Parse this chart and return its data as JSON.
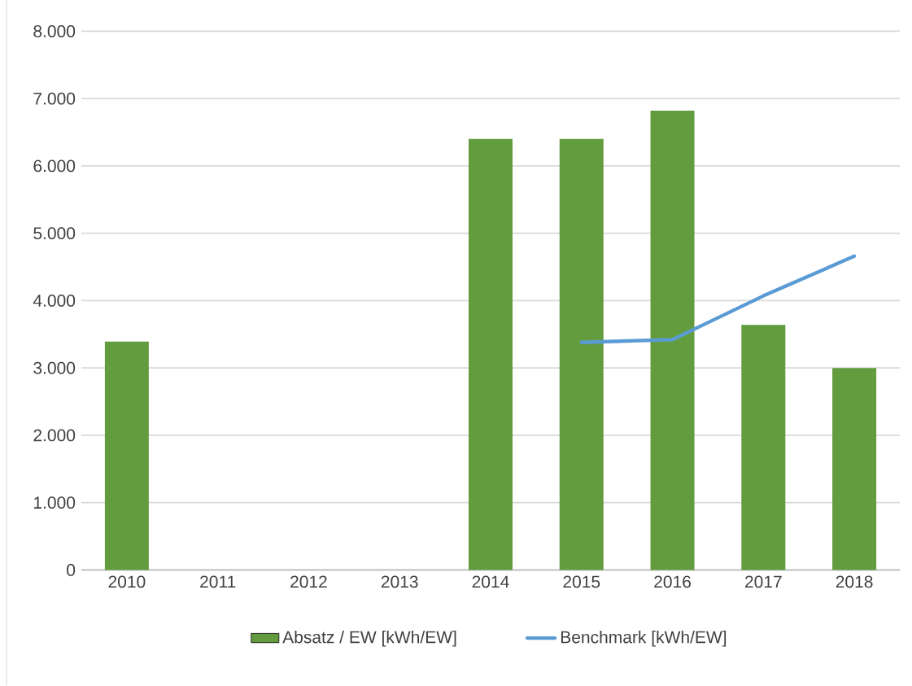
{
  "chart_data": {
    "type": "bar",
    "categories": [
      "2010",
      "2011",
      "2012",
      "2013",
      "2014",
      "2015",
      "2016",
      "2017",
      "2018"
    ],
    "series": [
      {
        "name": "Absatz / EW [kWh/EW]",
        "color": "#629c3e",
        "values": [
          3390,
          null,
          null,
          null,
          6400,
          6400,
          6820,
          3640,
          3000
        ]
      },
      {
        "name": "Benchmark [kWh/EW]",
        "type": "line",
        "color": "#5b9bd5",
        "values": [
          null,
          null,
          null,
          null,
          null,
          3380,
          3420,
          4070,
          4660
        ]
      }
    ],
    "ylim": [
      0,
      8000
    ],
    "yticks": [
      {
        "value": 0,
        "label": "0"
      },
      {
        "value": 1000,
        "label": "1.000"
      },
      {
        "value": 2000,
        "label": "2.000"
      },
      {
        "value": 3000,
        "label": "3.000"
      },
      {
        "value": 4000,
        "label": "4.000"
      },
      {
        "value": 5000,
        "label": "5.000"
      },
      {
        "value": 6000,
        "label": "6.000"
      },
      {
        "value": 7000,
        "label": "7.000"
      },
      {
        "value": 8000,
        "label": "8.000"
      }
    ],
    "grid": "y",
    "legend": "bottom"
  }
}
